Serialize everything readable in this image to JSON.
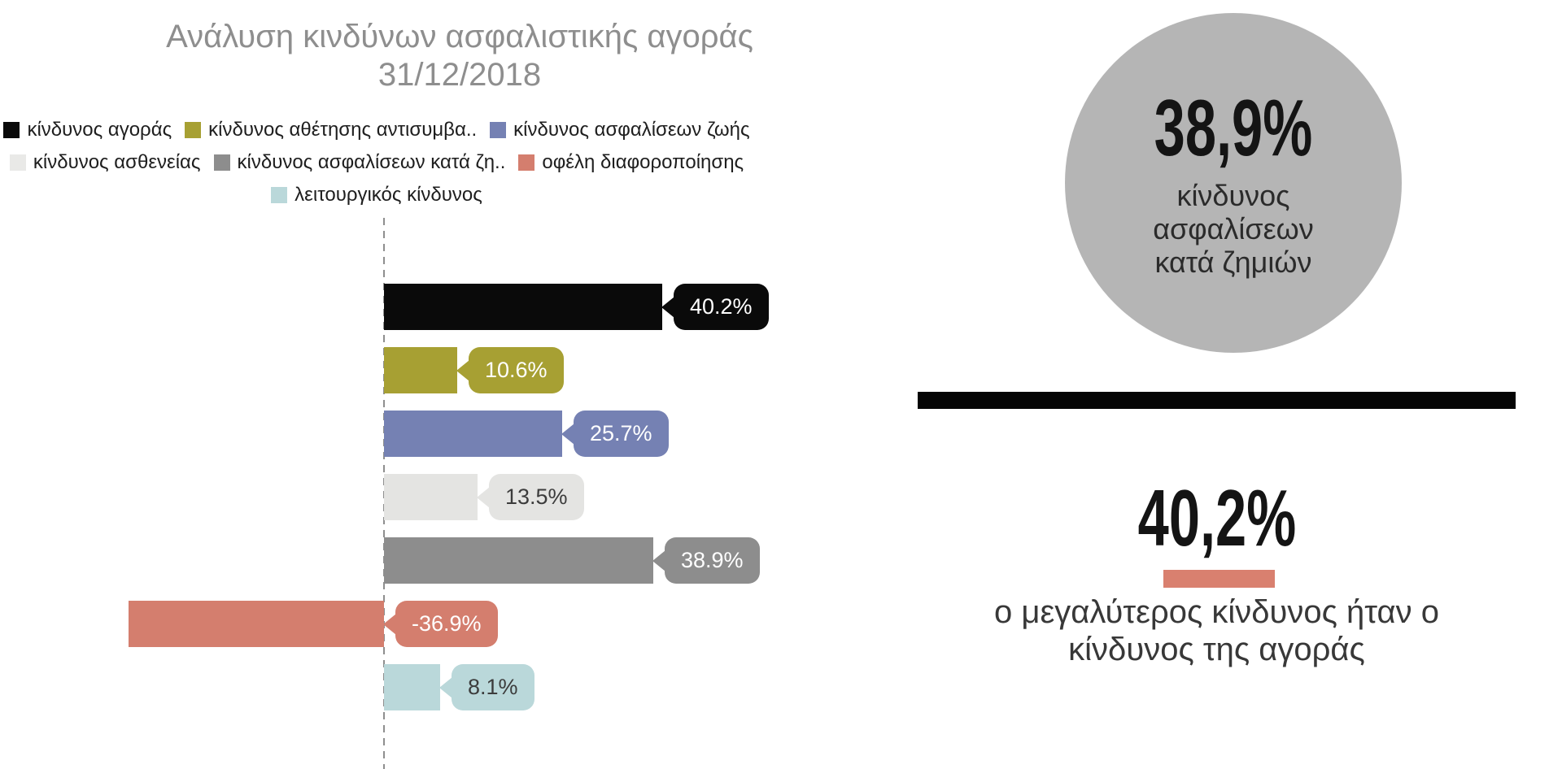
{
  "title": {
    "line1": "Ανάλυση κινδύνων ασφαλιστικής αγοράς",
    "line2": "31/12/2018"
  },
  "legend": {
    "rows": [
      [
        {
          "label": "κίνδυνος αγοράς",
          "color": "#0a0a0a"
        },
        {
          "label": "κίνδυνος αθέτησης αντισυμβα..",
          "color": "#a7a033"
        },
        {
          "label": "κίνδυνος ασφαλίσεων ζωής",
          "color": "#7581b3"
        }
      ],
      [
        {
          "label": "κίνδυνος ασθενείας",
          "color": "#e9e9e7"
        },
        {
          "label": "κίνδυνος ασφαλίσεων κατά ζη..",
          "color": "#8d8d8d"
        },
        {
          "label": "οφέλη διαφοροποίησης",
          "color": "#d47e6e"
        }
      ],
      [
        {
          "label": "λειτουργικός κίνδυνος",
          "color": "#bad8da"
        }
      ]
    ]
  },
  "chart_data": {
    "type": "bar",
    "orientation": "horizontal",
    "title": "Ανάλυση κινδύνων ασφαλιστικής αγοράς 31/12/2018",
    "categories": [
      "κίνδυνος αγοράς",
      "κίνδυνος αθέτησης αντισυμβα..",
      "κίνδυνος ασφαλίσεων ζωής",
      "κίνδυνος ασθενείας",
      "κίνδυνος ασφαλίσεων κατά ζη..",
      "οφέλη διαφοροποίησης",
      "λειτουργικός κίνδυνος"
    ],
    "values": [
      40.2,
      10.6,
      25.7,
      13.5,
      38.9,
      -36.9,
      8.1
    ],
    "labels": [
      "40.2%",
      "10.6%",
      "25.7%",
      "13.5%",
      "38.9%",
      "-36.9%",
      "8.1%"
    ],
    "colors": [
      "#0a0a0a",
      "#a7a033",
      "#7581b3",
      "#e4e4e2",
      "#8d8d8d",
      "#d47e6e",
      "#bad8da"
    ],
    "label_text_colors": [
      "#ffffff",
      "#ffffff",
      "#ffffff",
      "#3c3c3c",
      "#ffffff",
      "#ffffff",
      "#3c3c3c"
    ],
    "baseline": 0,
    "baseline_style": "dashed",
    "grid": false,
    "legend_position": "top",
    "value_suffix": "%"
  },
  "highlight_circle": {
    "value": "38,9%",
    "line1": "κίνδυνος",
    "line2": "ασφαλίσεων",
    "line3": "κατά ζημιών",
    "color": "#b5b5b5"
  },
  "stat": {
    "value": "40,2%",
    "underline_color": "#d9806f",
    "caption_line1": "ο μεγαλύτερος κίνδυνος ήταν ο",
    "caption_line2": "κίνδυνος της αγοράς"
  }
}
